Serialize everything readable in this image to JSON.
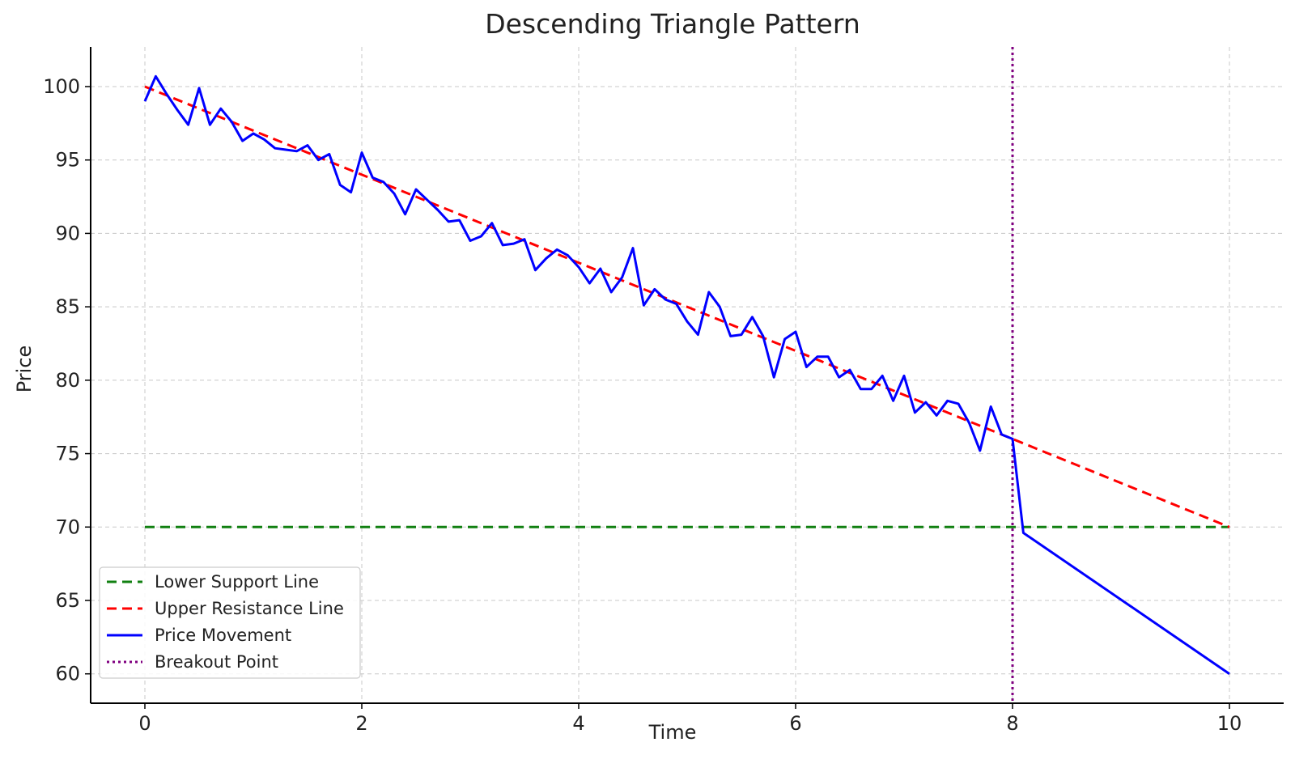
{
  "chart_data": {
    "type": "line",
    "title": "Descending Triangle Pattern",
    "xlabel": "Time",
    "ylabel": "Price",
    "xlim": [
      -0.5,
      10.5
    ],
    "ylim": [
      58,
      102.7
    ],
    "x_ticks": [
      0,
      2,
      4,
      6,
      8,
      10
    ],
    "y_ticks": [
      60,
      65,
      70,
      75,
      80,
      85,
      90,
      95,
      100
    ],
    "grid": true,
    "legend_position": "lower-left",
    "series": [
      {
        "name": "Lower Support Line",
        "style": "dashed",
        "color": "#118011",
        "x": [
          0,
          10
        ],
        "y": [
          70,
          70
        ]
      },
      {
        "name": "Upper Resistance Line",
        "style": "dashed",
        "color": "#ff0000",
        "x": [
          0,
          10
        ],
        "y": [
          100,
          70
        ]
      },
      {
        "name": "Price Movement",
        "style": "solid",
        "color": "#0000ff",
        "x": [
          0,
          0.1,
          0.2,
          0.3,
          0.4,
          0.5,
          0.6,
          0.7,
          0.8,
          0.9,
          1.0,
          1.1,
          1.2,
          1.3,
          1.4,
          1.5,
          1.6,
          1.7,
          1.8,
          1.9,
          2.0,
          2.1,
          2.2,
          2.3,
          2.4,
          2.5,
          2.6,
          2.7,
          2.8,
          2.9,
          3.0,
          3.1,
          3.2,
          3.3,
          3.4,
          3.5,
          3.6,
          3.7,
          3.8,
          3.9,
          4.0,
          4.1,
          4.2,
          4.3,
          4.4,
          4.5,
          4.6,
          4.7,
          4.8,
          4.9,
          5.0,
          5.1,
          5.2,
          5.3,
          5.4,
          5.5,
          5.6,
          5.7,
          5.8,
          5.9,
          6.0,
          6.1,
          6.2,
          6.3,
          6.4,
          6.5,
          6.6,
          6.7,
          6.8,
          6.9,
          7.0,
          7.1,
          7.2,
          7.3,
          7.4,
          7.5,
          7.6,
          7.7,
          7.8,
          7.9,
          8.0,
          8.1,
          10.0
        ],
        "y": [
          99.0,
          100.7,
          99.5,
          98.4,
          97.4,
          99.9,
          97.4,
          98.5,
          97.6,
          96.3,
          96.8,
          96.4,
          95.8,
          95.7,
          95.6,
          96.0,
          95.0,
          95.4,
          93.3,
          92.8,
          95.5,
          93.8,
          93.5,
          92.7,
          91.3,
          93.0,
          92.3,
          91.6,
          90.8,
          90.9,
          89.5,
          89.8,
          90.7,
          89.2,
          89.3,
          89.6,
          87.5,
          88.3,
          88.9,
          88.5,
          87.7,
          86.6,
          87.6,
          86.0,
          87.0,
          89.0,
          85.1,
          86.2,
          85.5,
          85.2,
          84.0,
          83.1,
          86.0,
          85.0,
          83.0,
          83.1,
          84.3,
          83.0,
          80.2,
          82.8,
          83.3,
          80.9,
          81.6,
          81.6,
          80.2,
          80.7,
          79.4,
          79.4,
          80.3,
          78.6,
          80.3,
          77.8,
          78.5,
          77.6,
          78.6,
          78.4,
          77.1,
          75.2,
          78.2,
          76.3,
          76.0,
          69.6,
          60.0
        ]
      },
      {
        "name": "Breakout Point",
        "style": "dotted",
        "color": "#800080",
        "x": [
          8,
          8
        ],
        "y": [
          102.7,
          58
        ]
      }
    ]
  }
}
